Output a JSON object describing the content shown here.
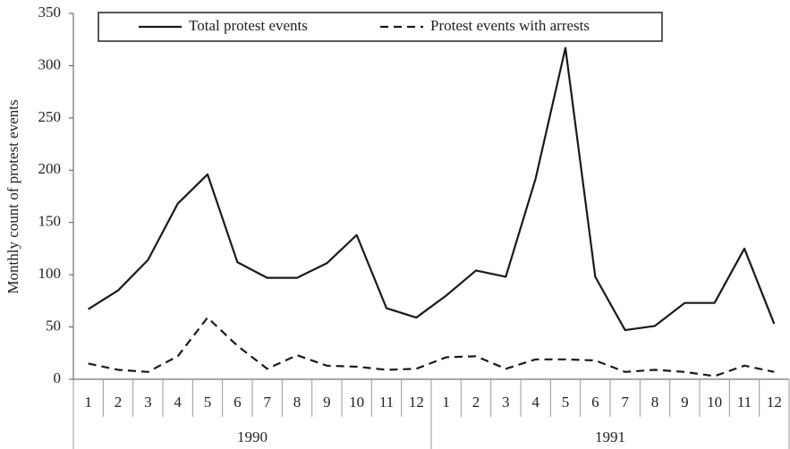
{
  "chart_data": {
    "type": "line",
    "ylabel": "Monthly count of protest events",
    "categories": [
      "1",
      "2",
      "3",
      "4",
      "5",
      "6",
      "7",
      "8",
      "9",
      "10",
      "11",
      "12",
      "1",
      "2",
      "3",
      "4",
      "5",
      "6",
      "7",
      "8",
      "9",
      "10",
      "11",
      "12"
    ],
    "groups": [
      "1990",
      "1991"
    ],
    "series": [
      {
        "name": "Total protest events",
        "color": "#1a1a1a",
        "dashed": false,
        "values": [
          67,
          85,
          114,
          168,
          196,
          112,
          97,
          97,
          111,
          138,
          68,
          59,
          80,
          104,
          98,
          192,
          317,
          98,
          47,
          51,
          73,
          73,
          125,
          53
        ]
      },
      {
        "name": "Protest events with arrests",
        "color": "#1a1a1a",
        "dashed": true,
        "values": [
          15,
          9,
          7,
          22,
          59,
          32,
          10,
          23,
          13,
          12,
          9,
          10,
          21,
          22,
          10,
          19,
          19,
          18,
          7,
          9,
          7,
          3,
          13,
          7
        ]
      }
    ],
    "ylim": [
      0,
      350
    ],
    "yticks": [
      0,
      50,
      100,
      150,
      200,
      250,
      300,
      350
    ],
    "legend": "top",
    "grid": false
  }
}
